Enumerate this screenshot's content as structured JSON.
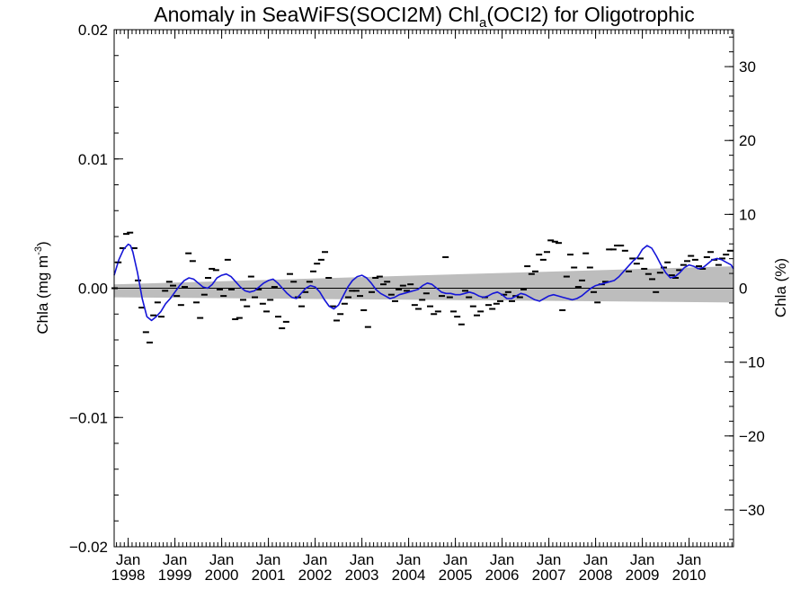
{
  "chart_data": {
    "type": "line",
    "title": {
      "main": "Anomaly in SeaWiFS(SOCI2M) Chl",
      "sub": "a",
      "tail": "(OCI2) for Oligotrophic"
    },
    "ylabel_left": {
      "main": "Chla (mg m",
      "sup": "-3",
      "tail": ")"
    },
    "ylabel_right": "Chla (%)",
    "left_axis": {
      "ylim": [
        -0.02,
        0.02
      ],
      "ticks": [
        -0.02,
        -0.01,
        0.0,
        0.01,
        0.02
      ],
      "tick_labels": [
        "−0.02",
        "−0.01",
        "0.00",
        "0.01",
        "0.02"
      ]
    },
    "right_axis": {
      "ylim": [
        -35,
        35
      ],
      "ticks": [
        -30,
        -20,
        -10,
        0,
        10,
        20,
        30
      ],
      "tick_labels": [
        "−30",
        "−20",
        "−10",
        "0",
        "10",
        "20",
        "30"
      ]
    },
    "x_axis": {
      "xlim": [
        1997.7,
        2010.95
      ],
      "tick_years": [
        1998,
        1999,
        2000,
        2001,
        2002,
        2003,
        2004,
        2005,
        2006,
        2007,
        2008,
        2009,
        2010
      ],
      "tick_month_label": "Jan",
      "tick_year_labels": [
        "1998",
        "1999",
        "2000",
        "2001",
        "2002",
        "2003",
        "2004",
        "2005",
        "2006",
        "2007",
        "2008",
        "2009",
        "2010"
      ]
    },
    "zero_line": 0.0,
    "trend_band": {
      "start": [
        1997.7,
        -0.0007,
        0.0003
      ],
      "end": [
        2010.95,
        -0.0011,
        0.0017
      ]
    },
    "monthly_anomaly": {
      "x": [
        1997.71,
        1997.79,
        1997.88,
        1997.96,
        1998.04,
        1998.13,
        1998.21,
        1998.29,
        1998.38,
        1998.46,
        1998.54,
        1998.63,
        1998.71,
        1998.79,
        1998.88,
        1998.96,
        1999.04,
        1999.13,
        1999.21,
        1999.29,
        1999.38,
        1999.46,
        1999.54,
        1999.63,
        1999.71,
        1999.79,
        1999.88,
        1999.96,
        2000.04,
        2000.13,
        2000.21,
        2000.29,
        2000.38,
        2000.46,
        2000.54,
        2000.63,
        2000.71,
        2000.79,
        2000.88,
        2000.96,
        2001.04,
        2001.13,
        2001.21,
        2001.29,
        2001.38,
        2001.46,
        2001.54,
        2001.63,
        2001.71,
        2001.79,
        2001.88,
        2001.96,
        2002.04,
        2002.13,
        2002.21,
        2002.29,
        2002.38,
        2002.46,
        2002.54,
        2002.63,
        2002.71,
        2002.79,
        2002.88,
        2002.96,
        2003.04,
        2003.13,
        2003.21,
        2003.29,
        2003.38,
        2003.46,
        2003.54,
        2003.63,
        2003.71,
        2003.79,
        2003.88,
        2003.96,
        2004.04,
        2004.13,
        2004.21,
        2004.29,
        2004.38,
        2004.46,
        2004.54,
        2004.63,
        2004.71,
        2004.79,
        2004.88,
        2004.96,
        2005.04,
        2005.13,
        2005.21,
        2005.29,
        2005.38,
        2005.46,
        2005.54,
        2005.63,
        2005.71,
        2005.79,
        2005.88,
        2005.96,
        2006.04,
        2006.13,
        2006.21,
        2006.29,
        2006.38,
        2006.46,
        2006.54,
        2006.63,
        2006.71,
        2006.79,
        2006.88,
        2006.96,
        2007.04,
        2007.13,
        2007.21,
        2007.29,
        2007.38,
        2007.46,
        2007.54,
        2007.63,
        2007.71,
        2007.79,
        2007.88,
        2007.96,
        2008.04,
        2008.13,
        2008.21,
        2008.29,
        2008.38,
        2008.46,
        2008.54,
        2008.63,
        2008.71,
        2008.79,
        2008.88,
        2008.96,
        2009.04,
        2009.13,
        2009.21,
        2009.29,
        2009.38,
        2009.46,
        2009.54,
        2009.63,
        2009.71,
        2009.79,
        2009.88,
        2009.96,
        2010.04,
        2010.13,
        2010.21,
        2010.29,
        2010.38,
        2010.46,
        2010.54,
        2010.63,
        2010.71,
        2010.79,
        2010.88
      ],
      "y": [
        0.0,
        0.002,
        0.0031,
        0.0042,
        0.0043,
        0.0031,
        0.0006,
        -0.0015,
        -0.0034,
        -0.0042,
        -0.0021,
        -0.0011,
        -0.0022,
        -0.0002,
        0.0005,
        0.0002,
        -0.0006,
        -0.0013,
        0.0001,
        0.0027,
        0.0021,
        -0.0011,
        -0.0023,
        -0.0005,
        0.0008,
        0.0015,
        0.0014,
        -0.0001,
        -0.0006,
        0.0022,
        -0.0001,
        -0.0024,
        -0.0023,
        -0.0009,
        -0.0014,
        0.0009,
        -0.0007,
        -0.0001,
        -0.0012,
        -0.0018,
        -0.0009,
        0.0001,
        -0.0022,
        -0.0031,
        -0.0026,
        0.0011,
        0.0005,
        -0.0007,
        -0.0014,
        -0.0003,
        0.0005,
        0.0013,
        0.0019,
        0.0022,
        0.0028,
        0.0008,
        -0.0014,
        -0.0025,
        -0.002,
        -0.0012,
        -0.0007,
        -0.0002,
        -0.0002,
        -0.0006,
        -0.0017,
        -0.003,
        -0.0003,
        0.0008,
        0.0009,
        0.0003,
        0.0005,
        -0.0005,
        -0.001,
        -0.0001,
        0.0002,
        -0.0002,
        0.0003,
        -0.0013,
        -0.0016,
        -0.0009,
        -0.0004,
        -0.0014,
        -0.002,
        -0.0018,
        -0.0006,
        0.0024,
        -0.0007,
        -0.0018,
        -0.0022,
        -0.0028,
        -0.0002,
        -0.0007,
        -0.0014,
        -0.0021,
        -0.0018,
        -0.0007,
        -0.0013,
        -0.0016,
        -0.0012,
        -0.001,
        -0.0005,
        -0.0003,
        -0.001,
        -0.0006,
        -0.0007,
        -0.0001,
        0.0017,
        0.0011,
        0.0013,
        0.0026,
        0.0022,
        0.0028,
        0.0037,
        0.0036,
        0.0035,
        -0.0017,
        0.0009,
        0.0026,
        0.0016,
        0.0001,
        0.0006,
        0.0027,
        0.0016,
        -0.0003,
        -0.0011,
        0.0003,
        0.0005,
        0.003,
        0.003,
        0.0033,
        0.0033,
        0.0029,
        0.0013,
        0.0023,
        0.0019,
        0.0023,
        0.0015,
        0.0011,
        0.0007,
        -0.0003,
        0.0012,
        0.0016,
        0.002,
        0.001,
        0.0008,
        0.0014,
        0.0018,
        0.0021,
        0.0025,
        0.0022,
        0.0017,
        0.0015,
        0.0024,
        0.0028,
        0.0022,
        0.0018,
        0.0023,
        0.0026,
        0.0029
      ]
    },
    "smoothed_series": {
      "name": "",
      "color": "#1515d8",
      "x": [
        1997.7,
        1997.8,
        1997.9,
        1998.0,
        1998.05,
        1998.1,
        1998.2,
        1998.3,
        1998.4,
        1998.5,
        1998.6,
        1998.7,
        1998.8,
        1998.9,
        1999.0,
        1999.1,
        1999.2,
        1999.3,
        1999.4,
        1999.5,
        1999.6,
        1999.7,
        1999.8,
        1999.9,
        2000.0,
        2000.1,
        2000.2,
        2000.3,
        2000.4,
        2000.5,
        2000.6,
        2000.7,
        2000.8,
        2000.9,
        2001.0,
        2001.1,
        2001.2,
        2001.3,
        2001.4,
        2001.5,
        2001.6,
        2001.7,
        2001.8,
        2001.9,
        2002.0,
        2002.1,
        2002.2,
        2002.3,
        2002.4,
        2002.5,
        2002.6,
        2002.7,
        2002.8,
        2002.9,
        2003.0,
        2003.1,
        2003.2,
        2003.3,
        2003.4,
        2003.5,
        2003.6,
        2003.7,
        2003.8,
        2003.9,
        2004.0,
        2004.1,
        2004.2,
        2004.3,
        2004.4,
        2004.5,
        2004.6,
        2004.7,
        2004.8,
        2004.9,
        2005.0,
        2005.1,
        2005.2,
        2005.3,
        2005.4,
        2005.5,
        2005.6,
        2005.7,
        2005.8,
        2005.9,
        2006.0,
        2006.1,
        2006.2,
        2006.3,
        2006.4,
        2006.5,
        2006.6,
        2006.7,
        2006.8,
        2006.9,
        2007.0,
        2007.1,
        2007.2,
        2007.3,
        2007.4,
        2007.5,
        2007.6,
        2007.7,
        2007.8,
        2007.9,
        2008.0,
        2008.1,
        2008.2,
        2008.3,
        2008.4,
        2008.5,
        2008.6,
        2008.7,
        2008.8,
        2008.9,
        2009.0,
        2009.1,
        2009.2,
        2009.3,
        2009.4,
        2009.5,
        2009.6,
        2009.7,
        2009.8,
        2009.9,
        2010.0,
        2010.1,
        2010.2,
        2010.3,
        2010.4,
        2010.5,
        2010.6,
        2010.7,
        2010.8,
        2010.9,
        2010.95
      ],
      "y": [
        0.001,
        0.0022,
        0.003,
        0.0034,
        0.0033,
        0.0028,
        0.0012,
        -0.0008,
        -0.0022,
        -0.0025,
        -0.0022,
        -0.0018,
        -0.0012,
        -0.0008,
        -0.0003,
        0.0002,
        0.0006,
        0.0008,
        0.0007,
        0.0004,
        0.0001,
        0.0,
        0.0003,
        0.0008,
        0.001,
        0.0011,
        0.0009,
        0.0005,
        0.0001,
        -0.0002,
        -0.0003,
        -0.0002,
        0.0001,
        0.0004,
        0.0006,
        0.0007,
        0.0004,
        0.0,
        -0.0004,
        -0.0007,
        -0.0008,
        -0.0004,
        0.0,
        0.0002,
        0.0001,
        -0.0003,
        -0.0009,
        -0.0014,
        -0.0016,
        -0.0013,
        -0.0006,
        0.0001,
        0.0006,
        0.0009,
        0.001,
        0.0008,
        0.0004,
        -0.0001,
        -0.0004,
        -0.0006,
        -0.0008,
        -0.0007,
        -0.0005,
        -0.0004,
        -0.0003,
        -0.0002,
        -0.0001,
        0.0002,
        0.0004,
        0.0003,
        0.0,
        -0.0003,
        -0.0004,
        -0.0004,
        -0.0005,
        -0.0005,
        -0.0004,
        -0.0003,
        -0.0004,
        -0.0006,
        -0.0007,
        -0.0006,
        -0.0004,
        -0.0003,
        -0.0005,
        -0.0008,
        -0.0008,
        -0.0006,
        -0.0004,
        -0.0005,
        -0.0007,
        -0.0009,
        -0.001,
        -0.0008,
        -0.0006,
        -0.0005,
        -0.0006,
        -0.0007,
        -0.0008,
        -0.0009,
        -0.0008,
        -0.0006,
        -0.0003,
        0.0,
        0.0002,
        0.0003,
        0.0004,
        0.0005,
        0.0006,
        0.0009,
        0.0013,
        0.0017,
        0.0021,
        0.0024,
        0.003,
        0.0033,
        0.0031,
        0.0025,
        0.0018,
        0.0012,
        0.0008,
        0.0009,
        0.0012,
        0.0016,
        0.0018,
        0.0017,
        0.0015,
        0.0016,
        0.0019,
        0.0022,
        0.0023,
        0.0022,
        0.002,
        0.0018,
        0.0015
      ]
    }
  }
}
